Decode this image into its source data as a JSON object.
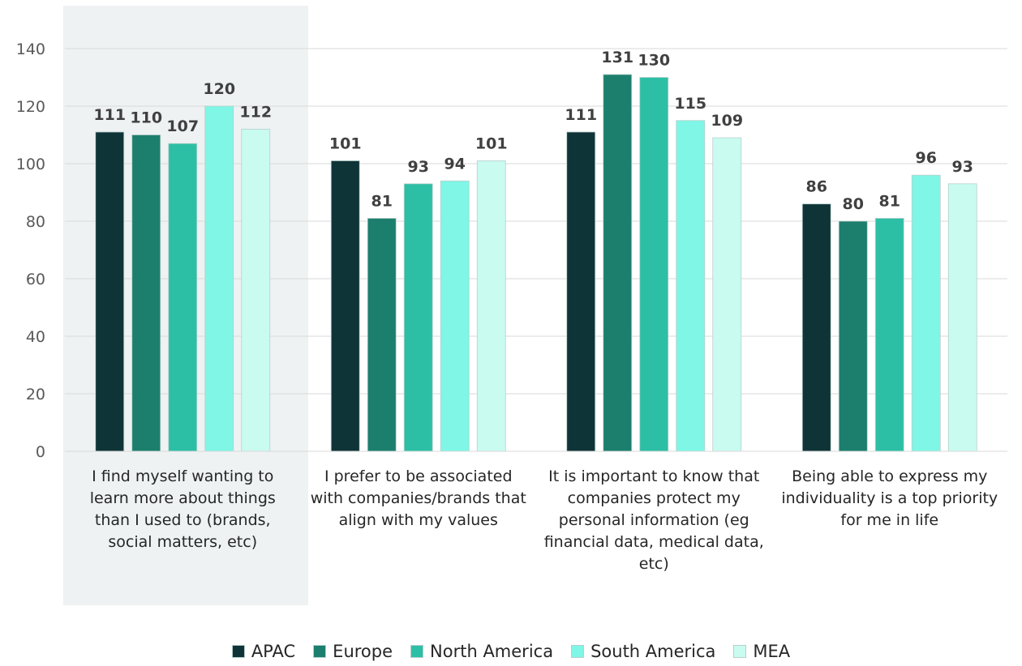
{
  "chart_data": {
    "type": "bar",
    "title": "",
    "xlabel": "",
    "ylabel": "",
    "ylim": [
      0,
      140
    ],
    "yticks": [
      "0",
      "20",
      "40",
      "60",
      "80",
      "100",
      "120",
      "140"
    ],
    "grid": true,
    "legend_position": "bottom",
    "highlighted_category_index": 0,
    "highlight_color": "#eef2f3",
    "categories": [
      "I find myself wanting to learn more about things than I used to (brands, social matters, etc)",
      "I prefer to be associated with companies/brands that align with my values",
      "It is important to know that companies protect my personal information (eg financial data, medical data, etc)",
      "Being able to express my individuality is a top priority for me in life"
    ],
    "series": [
      {
        "name": "APAC",
        "color": "#0f3438",
        "values": [
          111,
          101,
          111,
          86
        ]
      },
      {
        "name": "Europe",
        "color": "#1c7f6d",
        "values": [
          110,
          81,
          131,
          80
        ]
      },
      {
        "name": "North America",
        "color": "#2dbfa5",
        "values": [
          107,
          93,
          130,
          81
        ]
      },
      {
        "name": "South America",
        "color": "#7ff6e6",
        "values": [
          120,
          94,
          115,
          96
        ]
      },
      {
        "name": "MEA",
        "color": "#c9fbf0",
        "values": [
          112,
          101,
          109,
          93
        ]
      }
    ]
  }
}
